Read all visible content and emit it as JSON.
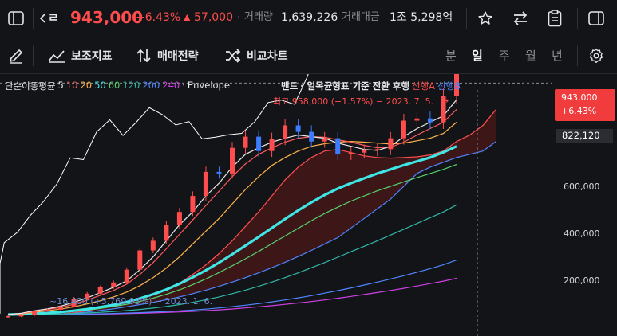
{
  "header": {
    "name_fragment": "ㄹ",
    "price": "943,000",
    "change_pct": "+6.43%",
    "change_amt": "57,000",
    "volume_label": "거래량",
    "volume_value": "1,639,226",
    "amount_label": "거래대금",
    "amount_value": "1조 5,298억"
  },
  "toolbar": {
    "indicators_label": "보조지표",
    "strategy_label": "매매전략",
    "compare_label": "비교차트",
    "periods": [
      "분",
      "일",
      "주",
      "월",
      "년"
    ],
    "active_period": "일"
  },
  "legend": {
    "ma_prefix": "단순이동평균",
    "ma_periods": [
      {
        "label": "5",
        "color": "#e8e8e8"
      },
      {
        "label": "10",
        "color": "#ff5a5a"
      },
      {
        "label": "20",
        "color": "#ffb347"
      },
      {
        "label": "50",
        "color": "#3ee6e6"
      },
      {
        "label": "60",
        "color": "#55d26e"
      },
      {
        "label": "120",
        "color": "#2fb8a8"
      },
      {
        "label": "200",
        "color": "#4f86ff"
      },
      {
        "label": "240",
        "color": "#d040e6"
      }
    ],
    "dot": "·",
    "envelope": "Envelope",
    "bands_fragment": "밴드",
    "ichimoku": "· 일목균형표  기준  전환  후행",
    "leading_a": "선행A",
    "leading_b": "선행B"
  },
  "annotations": {
    "high": "최고 958,000 (−1.57%) − 2023. 7. 5.",
    "low": "~16,400 (+5,769.93%) − 2023. 1. 6."
  },
  "price_axis": {
    "labels": [
      "600,000",
      "400,000",
      "200,000"
    ],
    "current_price": "943,000",
    "current_change": "+6.43%",
    "crosshair_price": "822,120"
  },
  "colors": {
    "up": "#ff4d4d",
    "down": "#3d7bff",
    "background": "#131417",
    "cloud_fill": "#8b1a1a",
    "accent_red": "#ff4d4d"
  },
  "chart_data": {
    "type": "candlestick",
    "ylim": [
      0,
      1050000
    ],
    "price_axis_ticks": [
      200000,
      400000,
      600000
    ],
    "high_annotation": {
      "value": 958000,
      "date": "2023. 7. 5."
    },
    "low_annotation": {
      "date": "2023. 1. 6."
    },
    "last_close": 943000,
    "crosshair_value": 822120,
    "series": [
      {
        "name": "종가",
        "values": [
          95000,
          98000,
          110000,
          115000,
          125000,
          150000,
          165000,
          185000,
          200000,
          240000,
          300000,
          330000,
          380000,
          420000,
          470000,
          545000,
          540000,
          620000,
          655000,
          610000,
          648000,
          690000,
          670000,
          640000,
          650000,
          600000,
          605000,
          612000,
          616000,
          650000,
          705000,
          712000,
          700000,
          782000,
          943000
        ]
      },
      {
        "name": "5",
        "values": [
          100000,
          104000,
          112000,
          118000,
          126000,
          138000,
          152000,
          168000,
          185000,
          205000,
          240000,
          280000,
          330000,
          380000,
          420000,
          470000,
          510000,
          560000,
          600000,
          620000,
          638000,
          650000,
          660000,
          655000,
          650000,
          635000,
          625000,
          615000,
          612000,
          625000,
          655000,
          680000,
          700000,
          720000,
          770000
        ]
      },
      {
        "name": "10",
        "values": [
          100000,
          103000,
          110000,
          116000,
          122000,
          132000,
          145000,
          160000,
          175000,
          195000,
          225000,
          262000,
          305000,
          350000,
          395000,
          440000,
          485000,
          530000,
          570000,
          600000,
          620000,
          638000,
          650000,
          655000,
          653000,
          645000,
          638000,
          628000,
          620000,
          622000,
          638000,
          660000,
          680000,
          700000,
          740000
        ]
      },
      {
        "name": "20",
        "values": [
          100000,
          102000,
          107000,
          112000,
          117000,
          124000,
          133000,
          143000,
          155000,
          170000,
          190000,
          215000,
          245000,
          280000,
          320000,
          360000,
          400000,
          445000,
          490000,
          530000,
          565000,
          590000,
          610000,
          625000,
          633000,
          638000,
          640000,
          638000,
          635000,
          632000,
          635000,
          642000,
          650000,
          665000,
          700000
        ]
      },
      {
        "name": "50",
        "values": [
          100000,
          101000,
          103000,
          105000,
          108000,
          112000,
          117000,
          123000,
          130000,
          139000,
          150000,
          163000,
          178000,
          196000,
          216000,
          238000,
          262000,
          288000,
          315000,
          342000,
          370000,
          398000,
          425000,
          450000,
          473000,
          493000,
          510000,
          525000,
          540000,
          553000,
          566000,
          578000,
          590000,
          606000,
          625000
        ]
      },
      {
        "name": "60",
        "values": [
          100000,
          100500,
          102000,
          104000,
          106500,
          110000,
          114000,
          119000,
          125000,
          132000,
          141000,
          151000,
          163000,
          177000,
          193000,
          211000,
          231000,
          252000,
          274000,
          297000,
          321000,
          345000,
          369000,
          393000,
          415000,
          435000,
          454000,
          470000,
          486000,
          500000,
          514000,
          527000,
          540000,
          553000,
          568000
        ]
      },
      {
        "name": "120",
        "values": [
          100000,
          100000,
          100500,
          101000,
          102000,
          103500,
          105000,
          107000,
          109500,
          112500,
          116000,
          120000,
          125000,
          131000,
          138000,
          146000,
          155000,
          165000,
          176000,
          188000,
          201000,
          215000,
          230000,
          246000,
          262000,
          279000,
          296000,
          313000,
          330000,
          348000,
          366000,
          384000,
          402000,
          420000,
          442000
        ]
      },
      {
        "name": "200",
        "values": [
          100000,
          100000,
          100000,
          100200,
          100500,
          101000,
          101700,
          102500,
          103500,
          104700,
          106000,
          107600,
          109400,
          111500,
          114000,
          117000,
          120500,
          124500,
          129000,
          134000,
          139500,
          145500,
          152000,
          159000,
          166500,
          174500,
          183000,
          192000,
          201000,
          211000,
          221000,
          232000,
          243000,
          255000,
          270000
        ]
      },
      {
        "name": "240",
        "values": [
          100000,
          100000,
          100000,
          100000,
          100200,
          100500,
          101000,
          101500,
          102200,
          103000,
          104000,
          105200,
          106600,
          108200,
          110000,
          112200,
          114700,
          117500,
          120600,
          124000,
          127700,
          131700,
          136000,
          140600,
          145500,
          150800,
          156400,
          162300,
          168500,
          175000,
          181800,
          188900,
          196300,
          204000,
          213000
        ]
      },
      {
        "name": "선행A",
        "values": [
          100000,
          102000,
          106000,
          112000,
          120000,
          130000,
          140000,
          152000,
          165000,
          180000,
          198000,
          225000,
          255000,
          290000,
          330000,
          375000,
          420000,
          470000,
          520000,
          560000,
          590000,
          610000,
          615000,
          605000,
          595000,
          590000,
          588000,
          590000,
          592000,
          598000,
          610000,
          640000,
          660000,
          690000,
          740000
        ]
      },
      {
        "name": "선행B",
        "values": [
          100000,
          101000,
          104000,
          108000,
          113000,
          118000,
          124000,
          131000,
          138000,
          146000,
          155000,
          165000,
          176000,
          188000,
          201000,
          215000,
          230000,
          246000,
          263000,
          281000,
          300000,
          320000,
          340000,
          370000,
          400000,
          430000,
          460000,
          500000,
          540000,
          560000,
          575000,
          590000,
          600000,
          610000,
          640000
        ]
      }
    ]
  }
}
